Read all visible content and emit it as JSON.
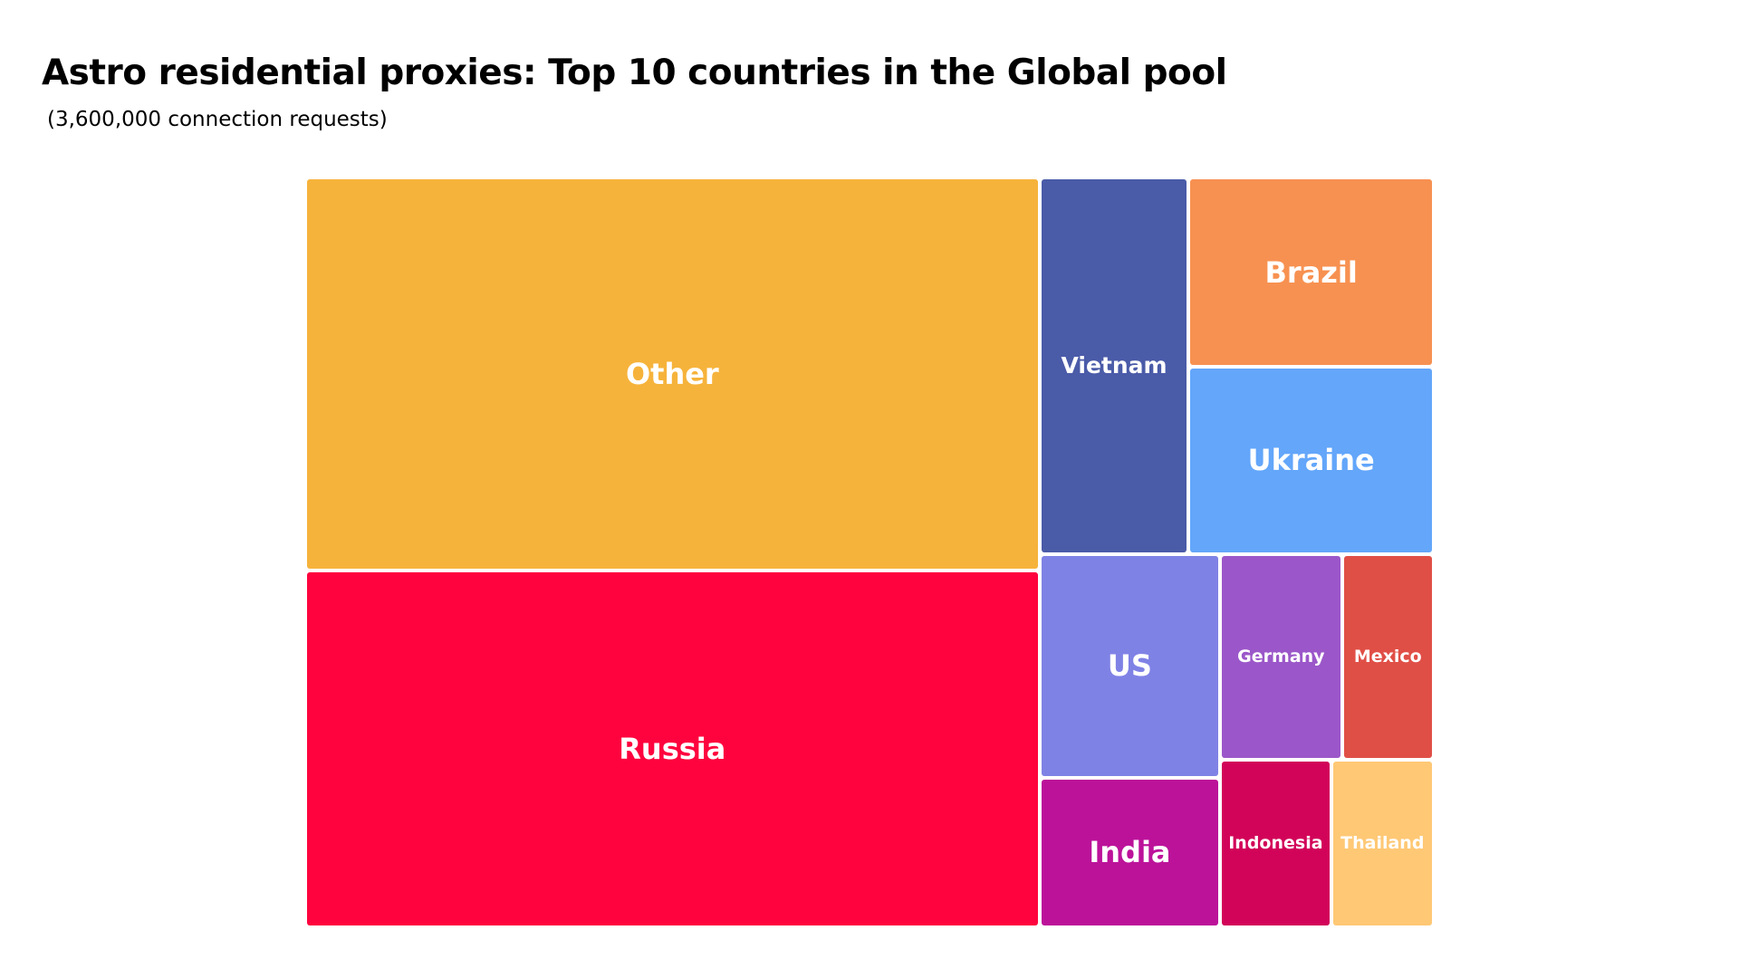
{
  "header": {
    "title": "Astro residential proxies: Top 10 countries in the Global pool",
    "subtitle": "(3,600,000 connection requests)"
  },
  "chart_data": {
    "type": "treemap",
    "title": "Astro residential proxies: Top 10 countries in the Global pool",
    "subtitle": "(3,600,000 connection requests)",
    "total": 3600000,
    "unit": "connection requests (estimated from tile areas)",
    "items": [
      {
        "id": "other",
        "label": "Other",
        "value": 1232000,
        "color": "#F6B33B"
      },
      {
        "id": "russia",
        "label": "Russia",
        "value": 1115000,
        "color": "#FF033E"
      },
      {
        "id": "vietnam",
        "label": "Vietnam",
        "value": 237000,
        "color": "#4A5BA8"
      },
      {
        "id": "brazil",
        "label": "Brazil",
        "value": 198000,
        "color": "#F79151"
      },
      {
        "id": "ukraine",
        "label": "Ukraine",
        "value": 195000,
        "color": "#63A6FA"
      },
      {
        "id": "us",
        "label": "US",
        "value": 172000,
        "color": "#7F82E5"
      },
      {
        "id": "india",
        "label": "India",
        "value": 114000,
        "color": "#BC129A"
      },
      {
        "id": "germany",
        "label": "Germany",
        "value": 107000,
        "color": "#9B57C9"
      },
      {
        "id": "mexico",
        "label": "Mexico",
        "value": 80000,
        "color": "#E04F46"
      },
      {
        "id": "indonesia",
        "label": "Indonesia",
        "value": 79000,
        "color": "#D20459"
      },
      {
        "id": "thailand",
        "label": "Thailand",
        "value": 73000,
        "color": "#FFC875"
      }
    ]
  }
}
